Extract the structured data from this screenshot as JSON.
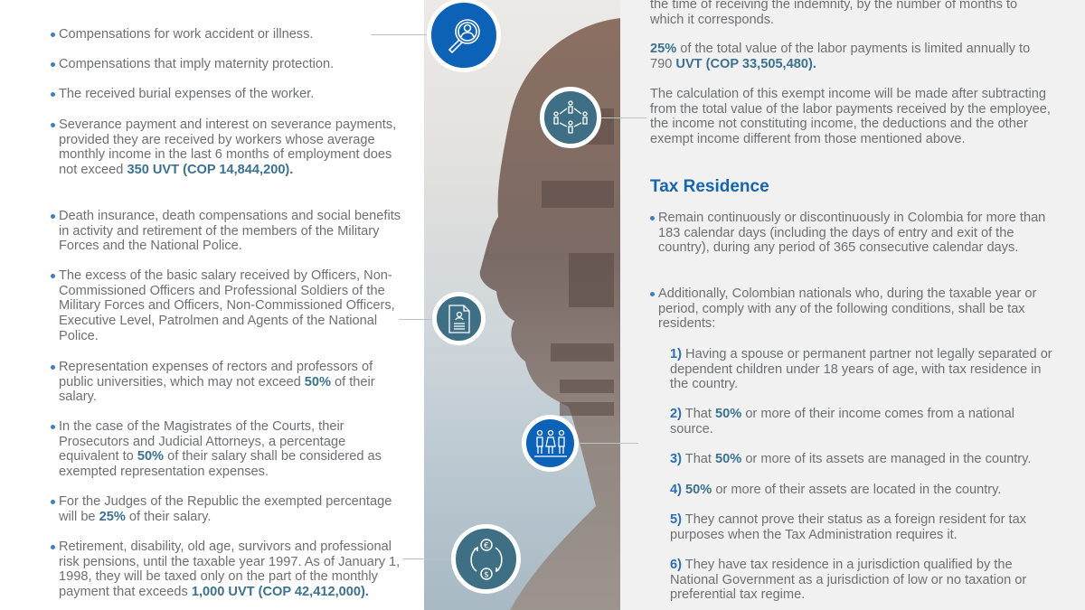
{
  "left": {
    "items": [
      {
        "parts": [
          "Compensations for work accident or illness."
        ]
      },
      {
        "parts": [
          "Compensations that imply maternity protection."
        ]
      },
      {
        "parts": [
          "The received burial expenses of the worker."
        ]
      },
      {
        "parts": [
          "Severance payment and interest on severance payments, provided they are received by workers whose average monthly income in the last 6 months of employment does not exceed ",
          "350 UVT (COP 14,844,200)."
        ]
      },
      {
        "parts": [
          "Death insurance, death compensations and social benefits in activity and retirement of the members of the Military Forces and the National Police."
        ]
      },
      {
        "parts": [
          "The excess of the basic salary received by Officers, Non-Commissioned Officers and Professional Soldiers of the Military Forces and Officers, Non-Commissioned Officers, Executive Level, Patrolmen and Agents of the National Police."
        ]
      },
      {
        "parts": [
          " Representation expenses of rectors and professors of public universities, which may not exceed ",
          "50%",
          " of their salary."
        ]
      },
      {
        "parts": [
          "In the case of the Magistrates of the Courts, their Prosecutors and Judicial Attorneys, a percentage equivalent to ",
          "50%",
          " of their salary shall be considered as exempted representation expenses."
        ]
      },
      {
        "parts": [
          "For the Judges of the Republic the exempted percentage will be ",
          "25%",
          " of their salary."
        ]
      },
      {
        "parts": [
          "Retirement, disability, old age, survivors and professional risk pensions, until the taxable year 1997. As of January 1, 1998, they will be taxed only on the part of the monthly payment that exceeds ",
          "1,000 UVT (COP 42,412,000)."
        ]
      }
    ]
  },
  "right": {
    "p1": "the time of receiving the indemnity, by the number of months to which it corresponds.",
    "p2": [
      "25%",
      " of the total value of the labor payments is limited annually to 790 ",
      "UVT (COP 33,505,480)."
    ],
    "p3": "The calculation of this exempt income will be made after subtracting from the total value of the labor payments received by the employee, the income not constituting income, the deductions and the other exempt income different from those mentioned above.",
    "heading": "Tax Residence",
    "bullets": [
      "Remain continuously or discontinuously in Colombia for more than 183 calendar days (including the days of entry and exit of the country), during any period of 365 consecutive calendar days.",
      "Additionally, Colombian nationals who, during the taxable year or period, comply with any of the following conditions, shall be tax residents:"
    ],
    "conditions": [
      {
        "num": "1)",
        "parts": [
          " Having a spouse or permanent partner not legally separated or dependent children under 18 years of age, with tax residence in the country."
        ]
      },
      {
        "num": "2)",
        "parts": [
          " That ",
          "50%",
          " or more of their income comes from a national source."
        ]
      },
      {
        "num": "3)",
        "parts": [
          " That ",
          "50%",
          " or more of its assets are managed in the country."
        ]
      },
      {
        "num": "4)",
        "parts": [
          " ",
          "50%",
          " or more of their assets are located in the country."
        ]
      },
      {
        "num": "5)",
        "parts": [
          " They cannot prove their status as a foreign resident for tax purposes when the Tax Administration requires it."
        ]
      },
      {
        "num": "6)",
        "parts": [
          " They have tax residence in a jurisdiction qualified by the National Government as a jurisdiction of low or no taxation or preferential tax regime."
        ]
      }
    ]
  },
  "icons": [
    "magnifier-person-icon",
    "people-network-icon",
    "resume-document-icon",
    "family-group-icon",
    "currency-exchange-icon"
  ],
  "colors": {
    "accent_blue": "#0b62b6",
    "accent_teal": "#3e6f85",
    "bold_text": "#3b7290",
    "heading": "#1565b0",
    "body_text": "#6d7073"
  }
}
